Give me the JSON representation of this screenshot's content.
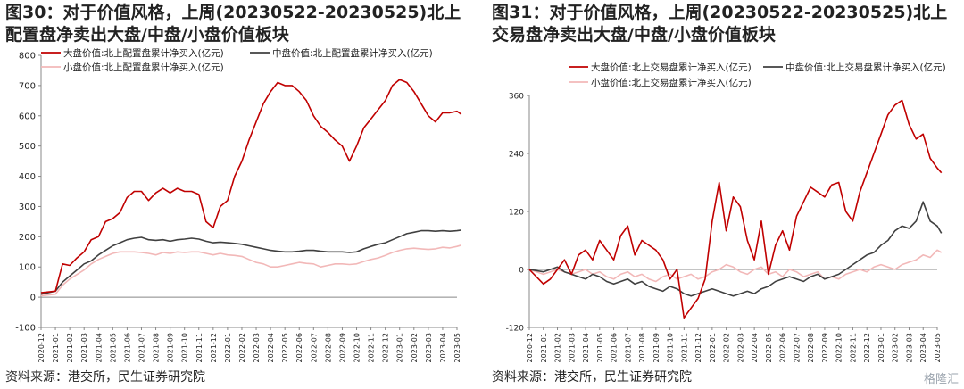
{
  "panels": [
    {
      "title": "图30：对于价值风格，上周(20230522-20230525)北上配置盘净卖出大盘/中盘/小盘价值板块",
      "source": "资料来源：港交所，民生证券研究院"
    },
    {
      "title": "图31：对于价值风格，上周(20230522-20230525)北上交易盘净卖出大盘/中盘/小盘价值板块",
      "source": "资料来源：港交所，民生证券研究院"
    }
  ],
  "watermark": "格隆汇",
  "colors": {
    "large": "#c00000",
    "mid": "#404040",
    "small": "#f2b8b8"
  },
  "chart_data": [
    {
      "type": "line",
      "title": "图30：对于价值风格，上周(20230522-20230525)北上配置盘净卖出大盘/中盘/小盘价值板块",
      "legend": [
        "大盘价值:北上配置盘累计净买入(亿元)",
        "中盘价值:北上配置盘累计净买入(亿元)",
        "小盘价值:北上配置盘累计净买入(亿元)"
      ],
      "ylim": [
        -100,
        800
      ],
      "yticks": [
        "-100",
        "0",
        "100",
        "200",
        "300",
        "400",
        "500",
        "600",
        "700",
        "800"
      ],
      "xticks": [
        "2020-12",
        "2021-01",
        "2021-02",
        "2021-03",
        "2021-04",
        "2021-05",
        "2021-06",
        "2021-07",
        "2021-08",
        "2021-09",
        "2021-10",
        "2021-11",
        "2021-12",
        "2022-01",
        "2022-02",
        "2022-03",
        "2022-04",
        "2022-05",
        "2022-06",
        "2022-07",
        "2022-08",
        "2022-09",
        "2022-10",
        "2022-11",
        "2022-12",
        "2023-01",
        "2023-02",
        "2023-03",
        "2023-04",
        "2023-05"
      ],
      "series": [
        {
          "name": "大盘价值:北上配置盘累计净买入(亿元)",
          "key": "large",
          "x": [
            0,
            1,
            1.5,
            2,
            2.5,
            3,
            3.5,
            4,
            4.5,
            5,
            5.5,
            6,
            6.5,
            7,
            7.5,
            8,
            8.5,
            9,
            9.5,
            10,
            10.5,
            11,
            11.5,
            12,
            12.5,
            13,
            13.5,
            14,
            14.5,
            15,
            15.5,
            16,
            16.5,
            17,
            17.5,
            18,
            18.5,
            19,
            19.5,
            20,
            20.5,
            21,
            21.5,
            22,
            22.5,
            23,
            23.5,
            24,
            24.5,
            25,
            25.5,
            26,
            26.5,
            27,
            27.5,
            28,
            28.5,
            29,
            29.3
          ],
          "values": [
            15,
            20,
            110,
            105,
            130,
            150,
            190,
            200,
            250,
            260,
            280,
            330,
            350,
            350,
            320,
            345,
            360,
            345,
            360,
            350,
            350,
            340,
            250,
            230,
            300,
            320,
            400,
            450,
            520,
            580,
            640,
            680,
            710,
            700,
            700,
            680,
            650,
            600,
            565,
            545,
            520,
            500,
            450,
            500,
            560,
            590,
            620,
            650,
            700,
            720,
            710,
            680,
            640,
            600,
            580,
            610,
            610,
            615,
            605
          ]
        },
        {
          "name": "中盘价值:北上配置盘累计净买入(亿元)",
          "key": "mid",
          "x": [
            0,
            1,
            1.5,
            2,
            2.5,
            3,
            3.5,
            4,
            4.5,
            5,
            5.5,
            6,
            6.5,
            7,
            7.5,
            8,
            8.5,
            9,
            9.5,
            10,
            10.5,
            11,
            11.5,
            12,
            12.5,
            13,
            13.5,
            14,
            14.5,
            15,
            15.5,
            16,
            16.5,
            17,
            17.5,
            18,
            18.5,
            19,
            19.5,
            20,
            20.5,
            21,
            21.5,
            22,
            22.5,
            23,
            23.5,
            24,
            24.5,
            25,
            25.5,
            26,
            26.5,
            27,
            27.5,
            28,
            28.5,
            29,
            29.3
          ],
          "values": [
            10,
            20,
            50,
            70,
            90,
            110,
            120,
            140,
            155,
            170,
            180,
            190,
            195,
            198,
            190,
            188,
            190,
            185,
            190,
            192,
            195,
            192,
            185,
            180,
            182,
            180,
            178,
            175,
            170,
            165,
            160,
            155,
            152,
            150,
            150,
            152,
            155,
            155,
            152,
            150,
            150,
            150,
            148,
            150,
            160,
            168,
            175,
            180,
            190,
            200,
            210,
            215,
            220,
            220,
            218,
            220,
            218,
            220,
            222
          ]
        },
        {
          "name": "小盘价值:北上配置盘累计净买入(亿元)",
          "key": "small",
          "x": [
            0,
            1,
            1.5,
            2,
            2.5,
            3,
            3.5,
            4,
            4.5,
            5,
            5.5,
            6,
            6.5,
            7,
            7.5,
            8,
            8.5,
            9,
            9.5,
            10,
            10.5,
            11,
            11.5,
            12,
            12.5,
            13,
            13.5,
            14,
            14.5,
            15,
            15.5,
            16,
            16.5,
            17,
            17.5,
            18,
            18.5,
            19,
            19.5,
            20,
            20.5,
            21,
            21.5,
            22,
            22.5,
            23,
            23.5,
            24,
            24.5,
            25,
            25.5,
            26,
            26.5,
            27,
            27.5,
            28,
            28.5,
            29,
            29.3
          ],
          "values": [
            5,
            10,
            40,
            60,
            75,
            90,
            110,
            125,
            135,
            145,
            150,
            150,
            150,
            148,
            145,
            140,
            148,
            145,
            150,
            148,
            150,
            150,
            145,
            140,
            145,
            140,
            138,
            135,
            125,
            115,
            110,
            100,
            100,
            105,
            110,
            115,
            112,
            110,
            100,
            105,
            110,
            110,
            108,
            110,
            118,
            125,
            130,
            138,
            148,
            155,
            160,
            162,
            160,
            158,
            160,
            165,
            163,
            168,
            172
          ]
        }
      ]
    },
    {
      "type": "line",
      "title": "图31：对于价值风格，上周(20230522-20230525)北上交易盘净卖出大盘/中盘/小盘价值板块",
      "legend": [
        "大盘价值:北上交易盘累计净买入(亿元)",
        "中盘价值:北上交易盘累计净买入(亿元)",
        "小盘价值:北上交易盘累计净买入(亿元)"
      ],
      "ylim": [
        -120,
        360
      ],
      "yticks": [
        "-120",
        "0",
        "120",
        "240",
        "360"
      ],
      "xticks": [
        "2020-12",
        "2021-01",
        "2021-02",
        "2021-03",
        "2021-04",
        "2021-05",
        "2021-06",
        "2021-07",
        "2021-08",
        "2021-09",
        "2021-10",
        "2021-11",
        "2021-12",
        "2022-01",
        "2022-02",
        "2022-03",
        "2022-04",
        "2022-05",
        "2022-06",
        "2022-07",
        "2022-08",
        "2022-09",
        "2022-10",
        "2022-11",
        "2022-12",
        "2023-01",
        "2023-02",
        "2023-03",
        "2023-04",
        "2023-05"
      ],
      "series": [
        {
          "name": "大盘价值:北上交易盘累计净买入(亿元)",
          "key": "large",
          "x": [
            0,
            1,
            1.5,
            2,
            2.5,
            3,
            3.5,
            4,
            4.5,
            5,
            5.5,
            6,
            6.5,
            7,
            7.5,
            8,
            8.5,
            9,
            9.5,
            10,
            10.5,
            11,
            11.5,
            12,
            12.5,
            13,
            13.5,
            14,
            14.5,
            15,
            15.5,
            16,
            16.5,
            17,
            17.5,
            18,
            18.5,
            19,
            19.5,
            20,
            20.5,
            21,
            21.5,
            22,
            22.5,
            23,
            23.5,
            24,
            24.5,
            25,
            25.5,
            26,
            26.5,
            27,
            27.5,
            28,
            28.5,
            29,
            29.3
          ],
          "values": [
            0,
            -30,
            -20,
            0,
            20,
            -10,
            30,
            40,
            20,
            60,
            40,
            20,
            70,
            90,
            30,
            60,
            50,
            40,
            20,
            -20,
            0,
            -100,
            -80,
            -60,
            -20,
            100,
            180,
            80,
            150,
            130,
            60,
            20,
            100,
            -10,
            50,
            80,
            40,
            110,
            140,
            170,
            160,
            150,
            175,
            180,
            120,
            100,
            160,
            200,
            240,
            280,
            320,
            340,
            350,
            300,
            270,
            280,
            230,
            210,
            200
          ]
        },
        {
          "name": "中盘价值:北上交易盘累计净买入(亿元)",
          "key": "mid",
          "x": [
            0,
            1,
            1.5,
            2,
            2.5,
            3,
            3.5,
            4,
            4.5,
            5,
            5.5,
            6,
            6.5,
            7,
            7.5,
            8,
            8.5,
            9,
            9.5,
            10,
            10.5,
            11,
            11.5,
            12,
            12.5,
            13,
            13.5,
            14,
            14.5,
            15,
            15.5,
            16,
            16.5,
            17,
            17.5,
            18,
            18.5,
            19,
            19.5,
            20,
            20.5,
            21,
            21.5,
            22,
            22.5,
            23,
            23.5,
            24,
            24.5,
            25,
            25.5,
            26,
            26.5,
            27,
            27.5,
            28,
            28.5,
            29,
            29.3
          ],
          "values": [
            0,
            -5,
            0,
            5,
            -5,
            -10,
            -15,
            -20,
            -10,
            -15,
            -25,
            -30,
            -25,
            -20,
            -30,
            -25,
            -35,
            -40,
            -45,
            -35,
            -40,
            -50,
            -55,
            -50,
            -45,
            -40,
            -45,
            -50,
            -55,
            -50,
            -45,
            -50,
            -40,
            -35,
            -25,
            -20,
            -15,
            -20,
            -25,
            -15,
            -10,
            -20,
            -15,
            -10,
            0,
            10,
            20,
            30,
            35,
            50,
            60,
            80,
            90,
            85,
            100,
            140,
            100,
            90,
            75
          ]
        },
        {
          "name": "小盘价值:北上交易盘累计净买入(亿元)",
          "key": "small",
          "x": [
            0,
            1,
            1.5,
            2,
            2.5,
            3,
            3.5,
            4,
            4.5,
            5,
            5.5,
            6,
            6.5,
            7,
            7.5,
            8,
            8.5,
            9,
            9.5,
            10,
            10.5,
            11,
            11.5,
            12,
            12.5,
            13,
            13.5,
            14,
            14.5,
            15,
            15.5,
            16,
            16.5,
            17,
            17.5,
            18,
            18.5,
            19,
            19.5,
            20,
            20.5,
            21,
            21.5,
            22,
            22.5,
            23,
            23.5,
            24,
            24.5,
            25,
            25.5,
            26,
            26.5,
            27,
            27.5,
            28,
            28.5,
            29,
            29.3
          ],
          "values": [
            0,
            -10,
            -5,
            0,
            -5,
            -10,
            -5,
            0,
            -10,
            -5,
            -15,
            -20,
            -10,
            -5,
            -15,
            -10,
            -20,
            -25,
            -15,
            -10,
            -20,
            -15,
            -10,
            -20,
            -15,
            -5,
            0,
            10,
            5,
            -5,
            -10,
            0,
            5,
            -10,
            -5,
            -15,
            0,
            -5,
            -15,
            -10,
            -5,
            -20,
            -15,
            -20,
            -10,
            -5,
            0,
            -5,
            5,
            10,
            5,
            0,
            10,
            15,
            20,
            30,
            25,
            40,
            35
          ]
        }
      ]
    }
  ]
}
